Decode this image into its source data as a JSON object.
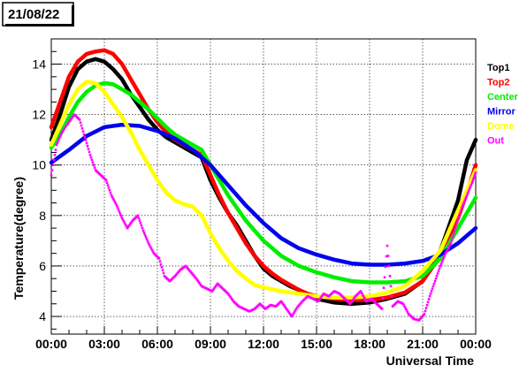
{
  "chart_data": {
    "type": "line",
    "title": "21/08/22",
    "xlabel": "Universal Time",
    "ylabel": "Temperature(degree)",
    "xlim": [
      0,
      24
    ],
    "ylim": [
      3.3,
      15.0
    ],
    "x_ticks": [
      "00:00",
      "03:00",
      "06:00",
      "09:00",
      "12:00",
      "15:00",
      "18:00",
      "21:00",
      "00:00"
    ],
    "y_ticks": [
      "4",
      "6",
      "8",
      "10",
      "12",
      "14"
    ],
    "grid": true,
    "legend_position": "right",
    "series": [
      {
        "name": "Top1",
        "color": "#000000",
        "style": "thick",
        "points": [
          [
            0,
            11.0
          ],
          [
            0.5,
            12.0
          ],
          [
            1.0,
            13.1
          ],
          [
            1.5,
            13.8
          ],
          [
            2.0,
            14.1
          ],
          [
            2.5,
            14.2
          ],
          [
            3.0,
            14.1
          ],
          [
            3.5,
            13.8
          ],
          [
            4.0,
            13.4
          ],
          [
            4.5,
            12.8
          ],
          [
            5.0,
            12.3
          ],
          [
            5.5,
            11.8
          ],
          [
            6.0,
            11.4
          ],
          [
            6.5,
            11.1
          ],
          [
            7.0,
            10.9
          ],
          [
            7.5,
            10.7
          ],
          [
            8.0,
            10.5
          ],
          [
            8.5,
            10.3
          ],
          [
            9.0,
            9.4
          ],
          [
            9.5,
            8.7
          ],
          [
            10.0,
            8.1
          ],
          [
            10.5,
            7.6
          ],
          [
            11.0,
            7.0
          ],
          [
            11.5,
            6.4
          ],
          [
            12.0,
            5.9
          ],
          [
            12.5,
            5.6
          ],
          [
            13.0,
            5.4
          ],
          [
            13.5,
            5.2
          ],
          [
            14.0,
            5.05
          ],
          [
            14.5,
            4.85
          ],
          [
            15.0,
            4.7
          ],
          [
            16.0,
            4.55
          ],
          [
            17.0,
            4.5
          ],
          [
            18.0,
            4.55
          ],
          [
            19.0,
            4.7
          ],
          [
            20.0,
            4.9
          ],
          [
            21.0,
            5.4
          ],
          [
            22.0,
            6.6
          ],
          [
            23.0,
            8.6
          ],
          [
            23.5,
            10.2
          ],
          [
            24.0,
            11.0
          ]
        ]
      },
      {
        "name": "Top2",
        "color": "#ff0000",
        "style": "thick",
        "points": [
          [
            0,
            11.5
          ],
          [
            0.5,
            12.5
          ],
          [
            1.0,
            13.5
          ],
          [
            1.5,
            14.1
          ],
          [
            2.0,
            14.4
          ],
          [
            2.5,
            14.5
          ],
          [
            3.0,
            14.55
          ],
          [
            3.5,
            14.4
          ],
          [
            4.0,
            14.0
          ],
          [
            4.5,
            13.4
          ],
          [
            5.0,
            12.8
          ],
          [
            5.5,
            12.2
          ],
          [
            6.0,
            11.7
          ],
          [
            6.5,
            11.3
          ],
          [
            7.0,
            11.0
          ],
          [
            7.5,
            10.8
          ],
          [
            8.0,
            10.6
          ],
          [
            8.5,
            10.4
          ],
          [
            9.0,
            9.6
          ],
          [
            9.5,
            8.8
          ],
          [
            10.0,
            8.1
          ],
          [
            10.5,
            7.5
          ],
          [
            11.0,
            6.9
          ],
          [
            11.5,
            6.4
          ],
          [
            12.0,
            6.0
          ],
          [
            12.5,
            5.7
          ],
          [
            13.0,
            5.45
          ],
          [
            13.5,
            5.25
          ],
          [
            14.0,
            5.05
          ],
          [
            14.5,
            4.9
          ],
          [
            15.0,
            4.8
          ],
          [
            16.0,
            4.7
          ],
          [
            17.0,
            4.65
          ],
          [
            18.0,
            4.65
          ],
          [
            19.0,
            4.75
          ],
          [
            20.0,
            4.95
          ],
          [
            21.0,
            5.4
          ],
          [
            22.0,
            6.4
          ],
          [
            23.0,
            7.9
          ],
          [
            23.5,
            8.9
          ],
          [
            24.0,
            10.0
          ]
        ]
      },
      {
        "name": "Center",
        "color": "#00ee00",
        "style": "thick",
        "points": [
          [
            0,
            10.7
          ],
          [
            0.5,
            11.2
          ],
          [
            1.0,
            11.9
          ],
          [
            1.5,
            12.5
          ],
          [
            2.0,
            12.9
          ],
          [
            2.5,
            13.15
          ],
          [
            3.0,
            13.25
          ],
          [
            3.5,
            13.2
          ],
          [
            4.0,
            13.0
          ],
          [
            4.5,
            12.8
          ],
          [
            5.0,
            12.5
          ],
          [
            5.5,
            12.2
          ],
          [
            6.0,
            11.85
          ],
          [
            6.5,
            11.5
          ],
          [
            7.0,
            11.2
          ],
          [
            7.5,
            11.0
          ],
          [
            8.0,
            10.8
          ],
          [
            8.5,
            10.6
          ],
          [
            9.0,
            10.0
          ],
          [
            9.5,
            9.4
          ],
          [
            10.0,
            8.8
          ],
          [
            10.5,
            8.3
          ],
          [
            11.0,
            7.8
          ],
          [
            11.5,
            7.4
          ],
          [
            12.0,
            7.0
          ],
          [
            12.5,
            6.7
          ],
          [
            13.0,
            6.4
          ],
          [
            13.5,
            6.2
          ],
          [
            14.0,
            6.0
          ],
          [
            15.0,
            5.75
          ],
          [
            16.0,
            5.55
          ],
          [
            17.0,
            5.4
          ],
          [
            18.0,
            5.35
          ],
          [
            19.0,
            5.35
          ],
          [
            20.0,
            5.4
          ],
          [
            21.0,
            5.6
          ],
          [
            22.0,
            6.3
          ],
          [
            23.0,
            7.5
          ],
          [
            24.0,
            8.7
          ]
        ]
      },
      {
        "name": "Mirror",
        "color": "#0000ee",
        "style": "thick",
        "points": [
          [
            0,
            10.1
          ],
          [
            1.0,
            10.6
          ],
          [
            2.0,
            11.15
          ],
          [
            3.0,
            11.5
          ],
          [
            4.0,
            11.6
          ],
          [
            5.0,
            11.55
          ],
          [
            6.0,
            11.35
          ],
          [
            7.0,
            11.05
          ],
          [
            8.0,
            10.6
          ],
          [
            9.0,
            10.0
          ],
          [
            10.0,
            9.2
          ],
          [
            11.0,
            8.4
          ],
          [
            12.0,
            7.7
          ],
          [
            13.0,
            7.1
          ],
          [
            14.0,
            6.7
          ],
          [
            15.0,
            6.45
          ],
          [
            16.0,
            6.25
          ],
          [
            17.0,
            6.1
          ],
          [
            18.0,
            6.05
          ],
          [
            19.0,
            6.05
          ],
          [
            20.0,
            6.1
          ],
          [
            21.0,
            6.2
          ],
          [
            22.0,
            6.45
          ],
          [
            23.0,
            6.9
          ],
          [
            24.0,
            7.5
          ]
        ]
      },
      {
        "name": "Dome",
        "color": "#ffff00",
        "style": "thick",
        "points": [
          [
            0,
            10.8
          ],
          [
            0.5,
            11.6
          ],
          [
            1.0,
            12.4
          ],
          [
            1.5,
            13.0
          ],
          [
            2.0,
            13.3
          ],
          [
            2.5,
            13.25
          ],
          [
            3.0,
            12.9
          ],
          [
            3.5,
            12.4
          ],
          [
            4.0,
            11.9
          ],
          [
            4.5,
            11.3
          ],
          [
            5.0,
            10.6
          ],
          [
            5.5,
            10.0
          ],
          [
            6.0,
            9.4
          ],
          [
            6.5,
            8.9
          ],
          [
            7.0,
            8.6
          ],
          [
            7.5,
            8.45
          ],
          [
            8.0,
            8.35
          ],
          [
            8.5,
            8.0
          ],
          [
            9.0,
            7.3
          ],
          [
            9.5,
            6.7
          ],
          [
            10.0,
            6.2
          ],
          [
            10.5,
            5.8
          ],
          [
            11.0,
            5.5
          ],
          [
            11.5,
            5.25
          ],
          [
            12.0,
            5.15
          ],
          [
            13.0,
            5.0
          ],
          [
            14.0,
            4.9
          ],
          [
            15.0,
            4.8
          ],
          [
            16.0,
            4.75
          ],
          [
            17.0,
            4.75
          ],
          [
            18.0,
            4.8
          ],
          [
            19.0,
            4.95
          ],
          [
            20.0,
            5.2
          ],
          [
            21.0,
            5.8
          ],
          [
            22.0,
            6.6
          ],
          [
            23.0,
            8.2
          ],
          [
            24.0,
            9.8
          ]
        ]
      },
      {
        "name": "Out",
        "color": "#ff00ff",
        "style": "markers",
        "points": [
          [
            0,
            9.6
          ],
          [
            0.3,
            10.8
          ],
          [
            0.6,
            11.3
          ],
          [
            1.0,
            11.7
          ],
          [
            1.3,
            12.0
          ],
          [
            1.6,
            11.8
          ],
          [
            1.9,
            11.1
          ],
          [
            2.2,
            10.4
          ],
          [
            2.5,
            9.8
          ],
          [
            2.8,
            9.6
          ],
          [
            3.1,
            9.4
          ],
          [
            3.4,
            8.8
          ],
          [
            3.7,
            8.4
          ],
          [
            4.0,
            7.9
          ],
          [
            4.3,
            7.5
          ],
          [
            4.6,
            7.8
          ],
          [
            4.9,
            8.0
          ],
          [
            5.2,
            7.4
          ],
          [
            5.5,
            6.9
          ],
          [
            5.8,
            6.5
          ],
          [
            6.1,
            6.3
          ],
          [
            6.4,
            5.6
          ],
          [
            6.7,
            5.4
          ],
          [
            7.0,
            5.6
          ],
          [
            7.3,
            5.85
          ],
          [
            7.6,
            6.0
          ],
          [
            7.9,
            5.75
          ],
          [
            8.2,
            5.5
          ],
          [
            8.5,
            5.2
          ],
          [
            8.8,
            5.1
          ],
          [
            9.1,
            5.0
          ],
          [
            9.4,
            5.3
          ],
          [
            9.7,
            5.1
          ],
          [
            10.0,
            4.9
          ],
          [
            10.3,
            4.6
          ],
          [
            10.6,
            4.4
          ],
          [
            10.9,
            4.3
          ],
          [
            11.2,
            4.2
          ],
          [
            11.5,
            4.3
          ],
          [
            11.8,
            4.5
          ],
          [
            12.1,
            4.3
          ],
          [
            12.4,
            4.45
          ],
          [
            12.7,
            4.4
          ],
          [
            13.0,
            4.6
          ],
          [
            13.3,
            4.3
          ],
          [
            13.6,
            4.0
          ],
          [
            13.9,
            4.35
          ],
          [
            14.2,
            4.6
          ],
          [
            14.5,
            4.8
          ],
          [
            14.8,
            4.7
          ],
          [
            15.1,
            4.6
          ],
          [
            15.4,
            4.9
          ],
          [
            15.7,
            4.8
          ],
          [
            16.0,
            5.0
          ],
          [
            16.3,
            4.9
          ],
          [
            16.6,
            4.7
          ],
          [
            16.9,
            4.5
          ],
          [
            17.2,
            4.8
          ],
          [
            17.5,
            5.0
          ],
          [
            17.8,
            4.6
          ],
          [
            18.1,
            4.7
          ],
          [
            18.4,
            4.5
          ],
          [
            18.7,
            4.3
          ],
          [
            19.0,
            6.8
          ],
          [
            19.3,
            4.4
          ],
          [
            19.6,
            4.6
          ],
          [
            19.9,
            4.5
          ],
          [
            20.2,
            4.1
          ],
          [
            20.5,
            3.9
          ],
          [
            20.8,
            3.85
          ],
          [
            21.1,
            4.1
          ],
          [
            21.4,
            4.8
          ],
          [
            21.7,
            5.4
          ],
          [
            22.0,
            6.0
          ],
          [
            22.3,
            6.5
          ],
          [
            22.6,
            6.9
          ],
          [
            22.9,
            7.6
          ],
          [
            23.2,
            8.3
          ],
          [
            23.5,
            8.8
          ],
          [
            23.8,
            9.3
          ],
          [
            24.0,
            9.7
          ]
        ]
      }
    ]
  }
}
